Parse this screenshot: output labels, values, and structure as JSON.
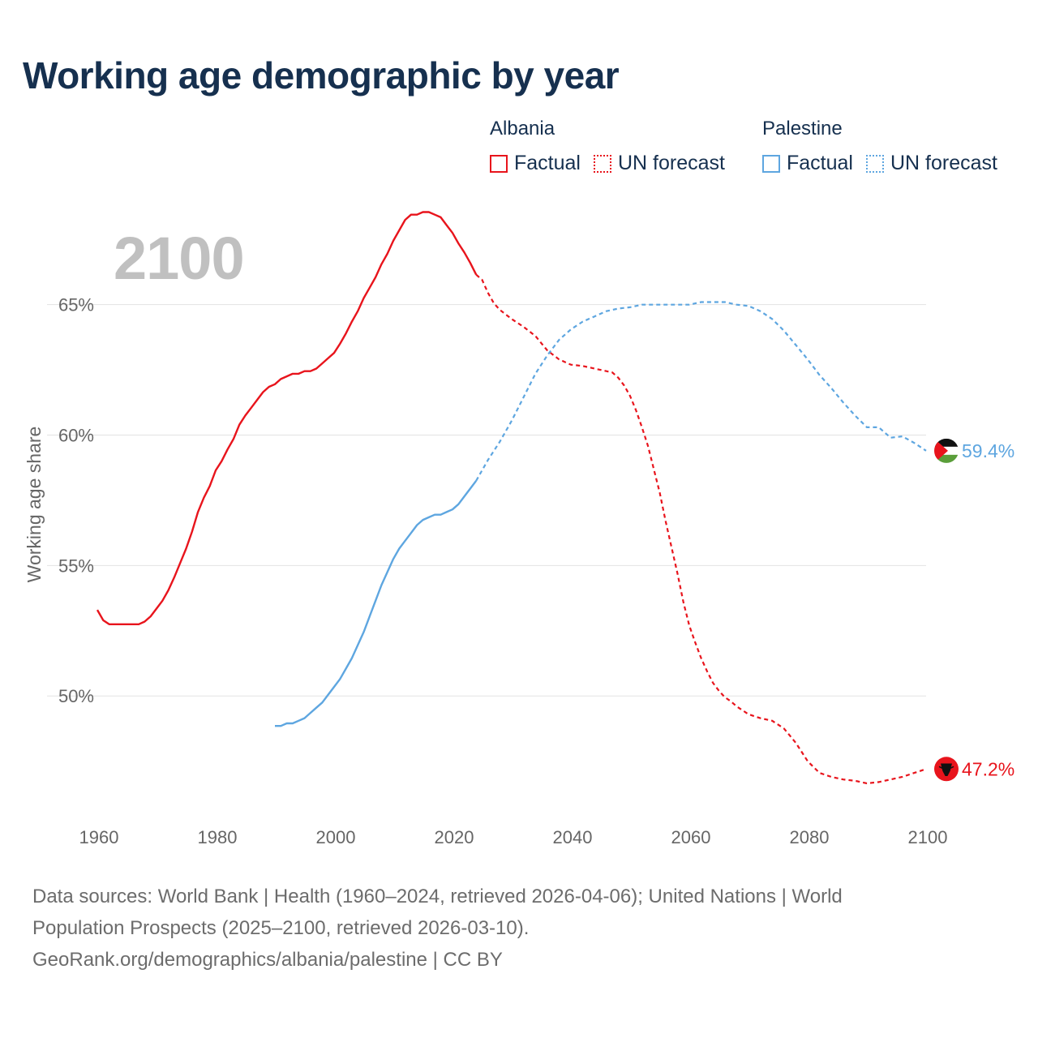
{
  "title": "Working age demographic by year",
  "year_label": "2100",
  "legend": {
    "groups": [
      {
        "name": "Albania",
        "factual": "Factual",
        "forecast": "UN forecast",
        "color": "#e8141c"
      },
      {
        "name": "Palestine",
        "factual": "Factual",
        "forecast": "UN forecast",
        "color": "#5ea6e0"
      }
    ]
  },
  "footer": {
    "line1": "Data sources: World Bank | Health (1960–2024, retrieved 2026-04-06); United Nations | World",
    "line2": "Population Prospects (2025–2100, retrieved 2026-03-10).",
    "line3": "GeoRank.org/demographics/albania/palestine | CC BY"
  },
  "chart_data": {
    "type": "line",
    "title": "Working age demographic by year",
    "xlabel": "",
    "ylabel": "Working age share",
    "xlim": [
      1960,
      2100
    ],
    "ylim": [
      45.5,
      69
    ],
    "x_ticks": [
      1960,
      1980,
      2000,
      2020,
      2040,
      2060,
      2080,
      2100
    ],
    "y_ticks": [
      50,
      55,
      60,
      65
    ],
    "y_tick_labels": [
      "50%",
      "55%",
      "60%",
      "65%"
    ],
    "grid": true,
    "forecast_start": 2024,
    "series": [
      {
        "name": "Albania",
        "color": "#e8141c",
        "end_label": "47.2%",
        "x": [
          1960,
          1961,
          1962,
          1965,
          1967,
          1968,
          1969,
          1970,
          1971,
          1972,
          1973,
          1974,
          1975,
          1976,
          1977,
          1978,
          1979,
          1980,
          1981,
          1982,
          1983,
          1984,
          1985,
          1986,
          1987,
          1988,
          1989,
          1990,
          1991,
          1992,
          1993,
          1994,
          1995,
          1996,
          1997,
          1998,
          1999,
          2000,
          2001,
          2002,
          2003,
          2004,
          2005,
          2006,
          2007,
          2008,
          2009,
          2010,
          2011,
          2012,
          2013,
          2014,
          2015,
          2016,
          2017,
          2018,
          2019,
          2020,
          2021,
          2022,
          2023,
          2024,
          2025,
          2026,
          2027,
          2028,
          2030,
          2032,
          2034,
          2036,
          2038,
          2040,
          2042,
          2044,
          2046,
          2047,
          2048,
          2049,
          2050,
          2051,
          2052,
          2053,
          2054,
          2055,
          2056,
          2057,
          2058,
          2059,
          2060,
          2061,
          2062,
          2063,
          2064,
          2065,
          2066,
          2067,
          2068,
          2070,
          2072,
          2074,
          2076,
          2078,
          2080,
          2082,
          2084,
          2086,
          2088,
          2090,
          2092,
          2094,
          2096,
          2098,
          2100
        ],
        "y": [
          53.3,
          52.9,
          52.75,
          52.75,
          52.75,
          52.85,
          53.05,
          53.35,
          53.65,
          54.05,
          54.55,
          55.1,
          55.65,
          56.3,
          57.05,
          57.6,
          58.05,
          58.65,
          59.0,
          59.45,
          59.85,
          60.4,
          60.75,
          61.05,
          61.35,
          61.65,
          61.85,
          61.95,
          62.15,
          62.25,
          62.35,
          62.35,
          62.45,
          62.45,
          62.55,
          62.75,
          62.95,
          63.15,
          63.5,
          63.9,
          64.35,
          64.75,
          65.25,
          65.65,
          66.05,
          66.55,
          66.95,
          67.45,
          67.85,
          68.25,
          68.45,
          68.45,
          68.55,
          68.55,
          68.45,
          68.35,
          68.05,
          67.75,
          67.35,
          67.0,
          66.6,
          66.15,
          65.95,
          65.45,
          65.05,
          64.8,
          64.45,
          64.15,
          63.8,
          63.25,
          62.9,
          62.7,
          62.65,
          62.55,
          62.45,
          62.4,
          62.2,
          61.9,
          61.5,
          60.95,
          60.3,
          59.6,
          58.7,
          57.8,
          56.7,
          55.7,
          54.7,
          53.6,
          52.7,
          52.05,
          51.45,
          50.95,
          50.5,
          50.2,
          49.95,
          49.8,
          49.6,
          49.3,
          49.15,
          49.05,
          48.75,
          48.2,
          47.5,
          47.05,
          46.9,
          46.8,
          46.75,
          46.65,
          46.7,
          46.8,
          46.9,
          47.05,
          47.2
        ]
      },
      {
        "name": "Palestine",
        "color": "#5ea6e0",
        "end_label": "59.4%",
        "x": [
          1990,
          1991,
          1992,
          1993,
          1994,
          1995,
          1996,
          1997,
          1998,
          1999,
          2000,
          2001,
          2002,
          2003,
          2004,
          2005,
          2006,
          2007,
          2008,
          2009,
          2010,
          2011,
          2012,
          2013,
          2014,
          2015,
          2016,
          2017,
          2018,
          2019,
          2020,
          2021,
          2022,
          2023,
          2024,
          2026,
          2028,
          2030,
          2032,
          2034,
          2036,
          2038,
          2040,
          2042,
          2044,
          2046,
          2048,
          2050,
          2052,
          2054,
          2056,
          2058,
          2060,
          2062,
          2064,
          2066,
          2068,
          2070,
          2072,
          2074,
          2076,
          2078,
          2080,
          2082,
          2084,
          2086,
          2088,
          2090,
          2092,
          2094,
          2096,
          2098,
          2100
        ],
        "y": [
          48.85,
          48.85,
          48.95,
          48.95,
          49.05,
          49.15,
          49.35,
          49.55,
          49.75,
          50.05,
          50.35,
          50.65,
          51.05,
          51.45,
          51.95,
          52.45,
          53.05,
          53.65,
          54.25,
          54.75,
          55.25,
          55.65,
          55.95,
          56.25,
          56.55,
          56.75,
          56.85,
          56.95,
          56.95,
          57.05,
          57.15,
          57.35,
          57.65,
          57.95,
          58.25,
          59.05,
          59.75,
          60.55,
          61.45,
          62.35,
          63.05,
          63.65,
          64.05,
          64.35,
          64.55,
          64.75,
          64.85,
          64.9,
          65.0,
          65.0,
          65.0,
          65.0,
          65.0,
          65.1,
          65.1,
          65.1,
          65.0,
          64.95,
          64.75,
          64.45,
          64.0,
          63.45,
          62.9,
          62.3,
          61.8,
          61.25,
          60.75,
          60.3,
          60.3,
          59.9,
          59.95,
          59.7,
          59.4
        ]
      }
    ]
  }
}
